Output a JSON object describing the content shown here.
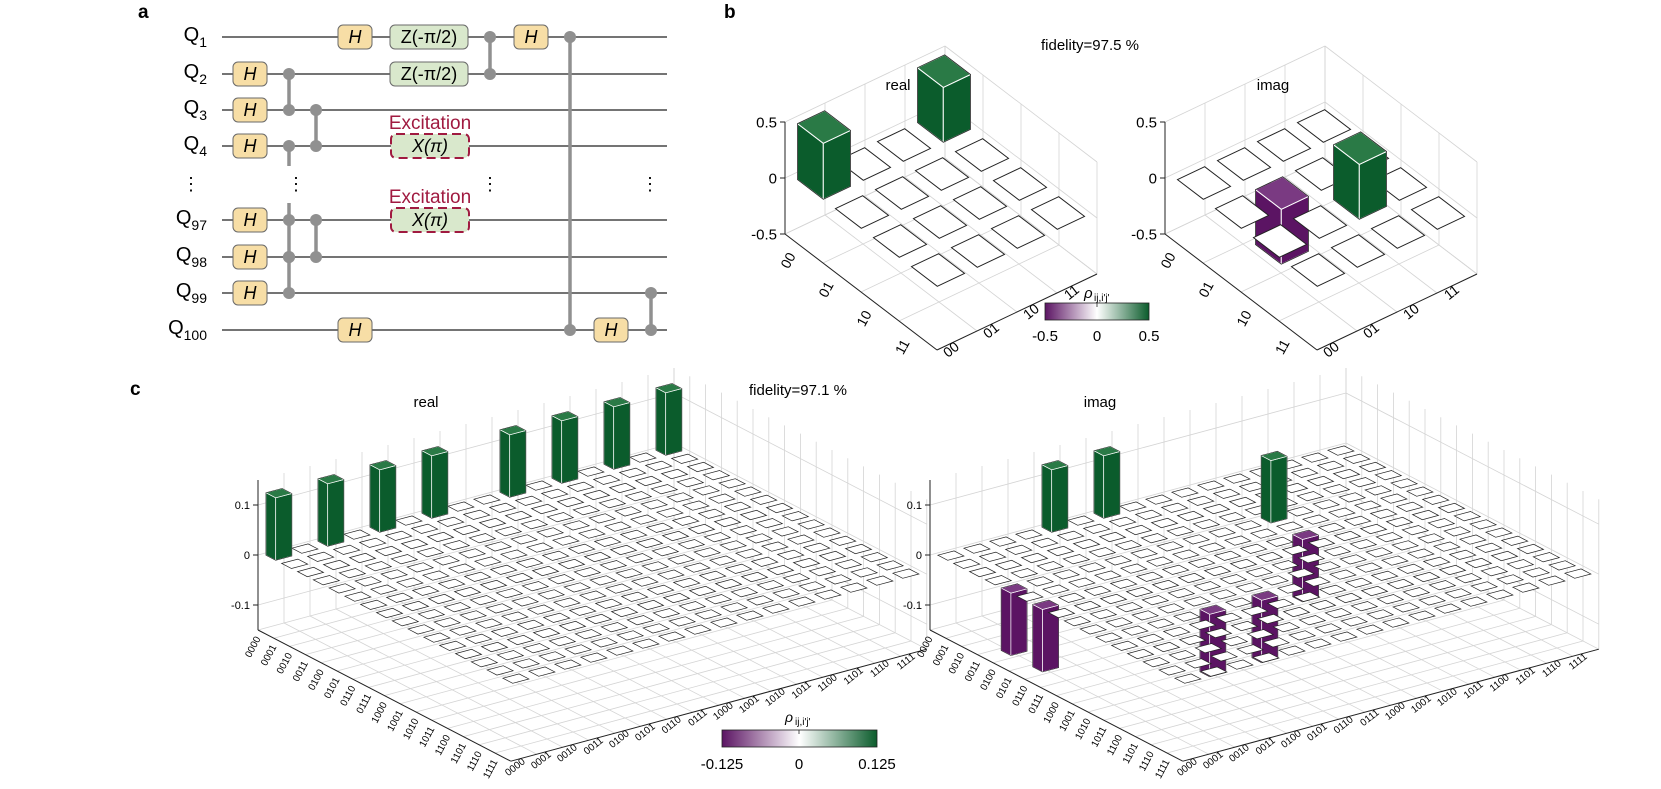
{
  "panels": {
    "a": {
      "label": "a",
      "qubits": [
        {
          "letter": "Q",
          "sub": "1"
        },
        {
          "letter": "Q",
          "sub": "2"
        },
        {
          "letter": "Q",
          "sub": "3"
        },
        {
          "letter": "Q",
          "sub": "4"
        },
        {
          "letter": "Q",
          "sub": "97"
        },
        {
          "letter": "Q",
          "sub": "98"
        },
        {
          "letter": "Q",
          "sub": "99"
        },
        {
          "letter": "Q",
          "sub": "100"
        }
      ],
      "gates": {
        "h": "H",
        "z": "Z(-π/2)",
        "x": "X(π)"
      },
      "excitation_label": "Excitation",
      "dots": "⋮"
    },
    "b": {
      "label": "b",
      "fidelity": "fidelity=97.5 %",
      "real_title": "real",
      "imag_title": "imag",
      "z_ticks": [
        "0.5",
        "0",
        "-0.5"
      ],
      "basis": [
        "00",
        "01",
        "10",
        "11"
      ],
      "colorbar": {
        "label": "ρ",
        "sub": "ij,i'j'",
        "ticks": [
          "-0.5",
          "0",
          "0.5"
        ]
      }
    },
    "c": {
      "label": "c",
      "fidelity": "fidelity=97.1 %",
      "real_title": "real",
      "imag_title": "imag",
      "z_ticks": [
        "0.1",
        "0",
        "-0.1"
      ],
      "basis": [
        "0000",
        "0001",
        "0010",
        "0011",
        "0100",
        "0101",
        "0110",
        "0111",
        "1000",
        "1001",
        "1010",
        "1011",
        "1100",
        "1101",
        "1110",
        "1111"
      ],
      "colorbar": {
        "label": "ρ",
        "sub": "ij,i'j'",
        "ticks": [
          "-0.125",
          "0",
          "0.125"
        ]
      }
    }
  },
  "colors": {
    "green": "#0b5c2c",
    "purple": "#5b1463",
    "excitation": "#a01a40",
    "gate_fill": "#f7dea6",
    "gate2_fill": "#d9e8cc",
    "wire": "#909090"
  }
}
